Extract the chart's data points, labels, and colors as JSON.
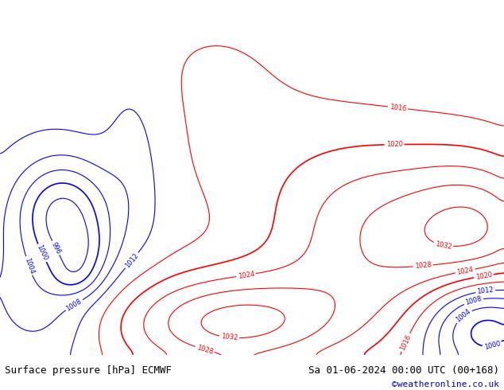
{
  "title_left": "Surface pressure [hPa] ECMWF",
  "title_right": "Sa 01-06-2024 00:00 UTC (00+168)",
  "credit": "©weatheronline.co.uk",
  "land_color": "#b0d890",
  "sea_color": "#d8dfe8",
  "fig_width": 6.34,
  "fig_height": 4.9,
  "dpi": 100,
  "credit_color": "#0000cc",
  "title_fontsize": 9,
  "credit_fontsize": 8,
  "lon_min": -110,
  "lon_max": 10,
  "lat_min": -62,
  "lat_max": 17
}
